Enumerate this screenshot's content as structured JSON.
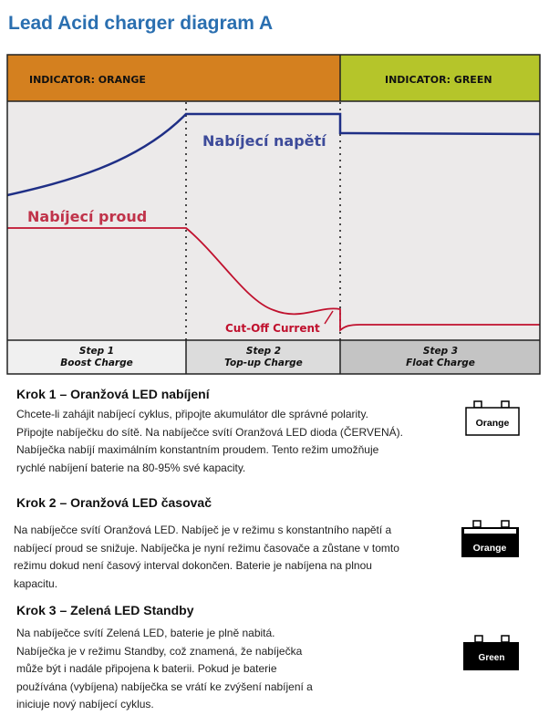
{
  "title": "Lead Acid charger diagram A",
  "diagram": {
    "indicator_orange": "INDICATOR: ORANGE",
    "indicator_green": "INDICATOR: GREEN",
    "voltage_label": "Nabíjecí napětí",
    "current_label": "Nabíjecí proud",
    "cutoff_label": "Cut-Off Current",
    "steps": [
      {
        "num": "Step 1",
        "name": "Boost Charge"
      },
      {
        "num": "Step 2",
        "name": "Top-up Charge"
      },
      {
        "num": "Step 3",
        "name": "Float Charge"
      }
    ],
    "colors": {
      "orange": "#d4801f",
      "green": "#b5c52a",
      "voltage": "#1f2f86",
      "current": "#c0112e",
      "plot_bg": "#eceaea"
    }
  },
  "sections": [
    {
      "heading": "Krok 1 – Oranžová LED nabíjení",
      "lines": [
        "Chcete-li zahájit nabíjecí cyklus, připojte akumulátor dle správné polarity.",
        "Připojte nabíječku do sítě. Na nabíječce svítí Oranžová LED dioda (ČERVENÁ).",
        "Nabíječka nabíjí maximálním konstantním proudem. Tento režim umožňuje",
        "rychlé nabíjení baterie na 80-95% své kapacity."
      ],
      "battery": "Orange"
    },
    {
      "heading": "Krok 2 – Oranžová LED časovač",
      "lines": [
        "Na nabíječce svítí Oranžová LED. Nabíječ je v režimu s konstantního napětí a",
        "nabíjecí proud se snižuje. Nabíječka je nyní režimu časovače a zůstane v tomto",
        "režimu dokud není časový interval dokončen. Baterie je nabíjena na plnou",
        "kapacitu."
      ],
      "battery": "Orange"
    },
    {
      "heading": "Krok 3 – Zelená LED Standby",
      "lines": [
        "Na nabíječce svítí Zelená LED, baterie je plně nabitá.",
        "Nabíječka je v režimu Standby, což znamená, že nabíječka",
        "může být i nadále připojena k baterii. Pokud je baterie",
        "používána (vybíjena) nabíječka se vrátí ke zvýšení nabíjení a",
        "iniciuje nový nabíjecí cyklus."
      ],
      "battery": "Green"
    }
  ]
}
